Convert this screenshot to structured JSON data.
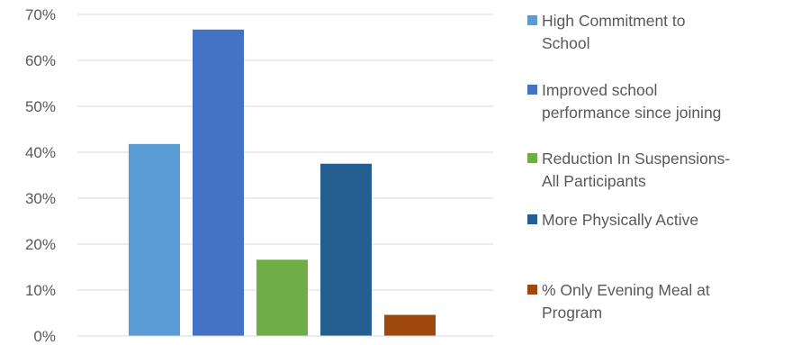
{
  "chart_data": {
    "type": "bar",
    "title": "",
    "xlabel": "",
    "ylabel": "",
    "ylim": [
      0,
      0.7
    ],
    "yticks": [
      0,
      0.1,
      0.2,
      0.3,
      0.4,
      0.5,
      0.6,
      0.7
    ],
    "ytick_labels": [
      "0%",
      "10%",
      "20%",
      "30%",
      "40%",
      "50%",
      "60%",
      "70%"
    ],
    "grid": true,
    "legend_position": "right",
    "series": [
      {
        "name": " High Commitment to\nSchool",
        "value": 0.418,
        "color": "#5B9BD5"
      },
      {
        "name": "Improved school\nperformance since joining",
        "value": 0.667,
        "color": "#4472C4"
      },
      {
        "name": "Reduction In Suspensions-\nAll Participants",
        "value": 0.166,
        "color": "#70AD47"
      },
      {
        "name": "More Physically Active",
        "value": 0.375,
        "color": "#255E91"
      },
      {
        "name": "% Only Evening Meal at\nProgram",
        "value": 0.046,
        "color": "#9E480E"
      }
    ]
  }
}
